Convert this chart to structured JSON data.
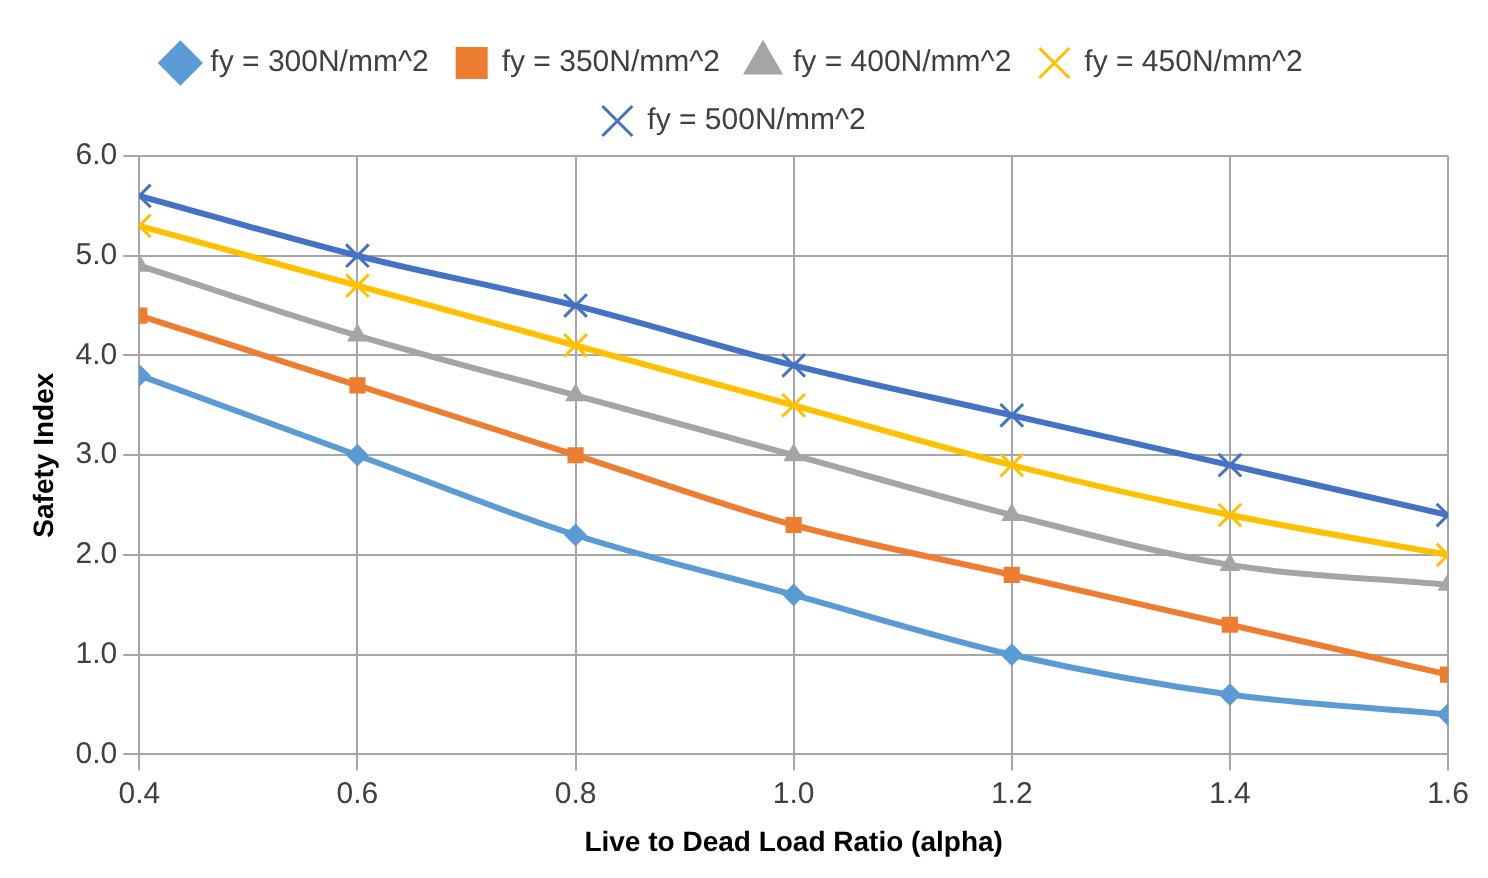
{
  "chart_data": {
    "type": "line",
    "xlabel": "Live to Dead Load Ratio (alpha)",
    "ylabel": "Safety Index",
    "x": [
      0.4,
      0.6,
      0.8,
      1.0,
      1.2,
      1.4,
      1.6
    ],
    "series": [
      {
        "name": "fy = 300N/mm^2",
        "color": "#5b9bd5",
        "marker": "diamond",
        "values": [
          3.8,
          3.0,
          2.2,
          1.6,
          1.0,
          0.6,
          0.4
        ]
      },
      {
        "name": "fy = 350N/mm^2",
        "color": "#ed7d31",
        "marker": "square",
        "values": [
          4.4,
          3.7,
          3.0,
          2.3,
          1.8,
          1.3,
          0.8
        ]
      },
      {
        "name": "fy = 400N/mm^2",
        "color": "#a5a5a5",
        "marker": "triangle",
        "values": [
          4.9,
          4.2,
          3.6,
          3.0,
          2.4,
          1.9,
          1.7
        ]
      },
      {
        "name": "fy = 450N/mm^2",
        "color": "#ffc000",
        "marker": "cross",
        "values": [
          5.3,
          4.7,
          4.1,
          3.5,
          2.9,
          2.4,
          2.0
        ]
      },
      {
        "name": "fy = 500N/mm^2",
        "color": "#4472c4",
        "marker": "cross",
        "values": [
          5.6,
          5.0,
          4.5,
          3.9,
          3.4,
          2.9,
          2.4
        ]
      }
    ],
    "xlim": [
      0.4,
      1.6
    ],
    "xticks": [
      {
        "value": 0.4,
        "label": "0.4"
      },
      {
        "value": 0.6,
        "label": "0.6"
      },
      {
        "value": 0.8,
        "label": "0.8"
      },
      {
        "value": 1.0,
        "label": "1.0"
      },
      {
        "value": 1.2,
        "label": "1.2"
      },
      {
        "value": 1.4,
        "label": "1.4"
      },
      {
        "value": 1.6,
        "label": "1.6"
      }
    ],
    "ylim": [
      0,
      6
    ],
    "yticks": [
      {
        "value": 0,
        "label": "0.0"
      },
      {
        "value": 1,
        "label": "1.0"
      },
      {
        "value": 2,
        "label": "2.0"
      },
      {
        "value": 3,
        "label": "3.0"
      },
      {
        "value": 4,
        "label": "4.0"
      },
      {
        "value": 5,
        "label": "5.0"
      },
      {
        "value": 6,
        "label": "6.0"
      }
    ],
    "grid": true,
    "legend": "top",
    "line_style": "solid"
  }
}
